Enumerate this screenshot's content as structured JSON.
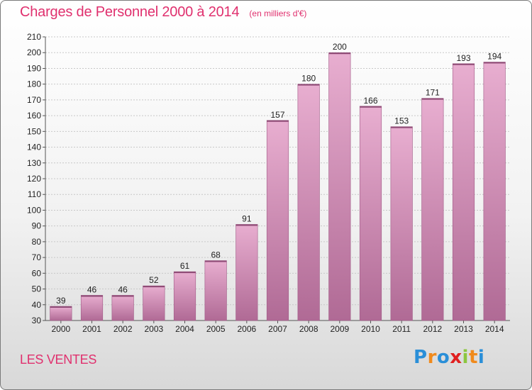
{
  "title": "Charges de Personnel 2000 à 2014",
  "unit": "(en milliers d'€)",
  "commune": "LES VENTES",
  "logo": {
    "text": "Proxiti",
    "letters": [
      {
        "char": "P",
        "color": "#2a8fd8"
      },
      {
        "char": "r",
        "color": "#f08a1c"
      },
      {
        "char": "o",
        "color": "#2a8fd8"
      },
      {
        "char": "x",
        "color": "#e02020"
      },
      {
        "char": "i",
        "color": "#8cc63f"
      },
      {
        "char": "t",
        "color": "#f08a1c"
      },
      {
        "char": "i",
        "color": "#2a8fd8"
      }
    ]
  },
  "chart_data": {
    "type": "bar",
    "categories": [
      "2000",
      "2001",
      "2002",
      "2003",
      "2004",
      "2005",
      "2006",
      "2007",
      "2008",
      "2009",
      "2010",
      "2011",
      "2012",
      "2013",
      "2014"
    ],
    "values": [
      39,
      46,
      46,
      52,
      61,
      68,
      91,
      157,
      180,
      200,
      166,
      153,
      171,
      193,
      194
    ],
    "ylim": [
      30,
      210
    ],
    "yticks": [
      30,
      40,
      50,
      60,
      70,
      80,
      90,
      100,
      110,
      120,
      130,
      140,
      150,
      160,
      170,
      180,
      190,
      200,
      210
    ],
    "grid": true,
    "bar_color_top": "#e8aed0",
    "bar_color_bottom": "#b06a95",
    "bar_edge": "#a05a86"
  }
}
